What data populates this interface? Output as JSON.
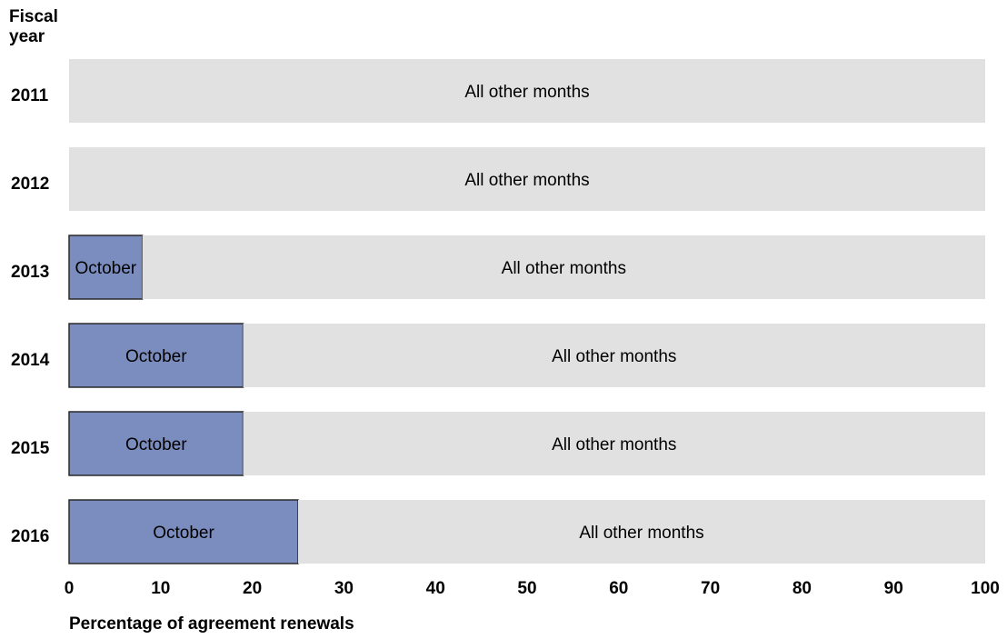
{
  "chart_data": {
    "type": "bar",
    "orientation": "horizontal",
    "stacked": true,
    "y_axis_title": "Fiscal\nyear",
    "xlabel": "Percentage of agreement renewals",
    "xlim": [
      0,
      100
    ],
    "xticks": [
      0,
      10,
      20,
      30,
      40,
      50,
      60,
      70,
      80,
      90,
      100
    ],
    "categories": [
      "2011",
      "2012",
      "2013",
      "2014",
      "2015",
      "2016"
    ],
    "series": [
      {
        "name": "October",
        "values": [
          0,
          0,
          8,
          19,
          19,
          25
        ],
        "color": "#7b8cbe"
      },
      {
        "name": "All other months",
        "values": [
          100,
          100,
          92,
          81,
          81,
          75
        ],
        "color": "#e1e1e1"
      }
    ],
    "segment_labels": {
      "October": [
        "",
        "",
        "October",
        "October",
        "October",
        "October"
      ],
      "All other months": [
        "All other months",
        "All other months",
        "All other months",
        "All other months",
        "All other months",
        "All other months"
      ]
    },
    "grid": false,
    "legend": "none"
  }
}
